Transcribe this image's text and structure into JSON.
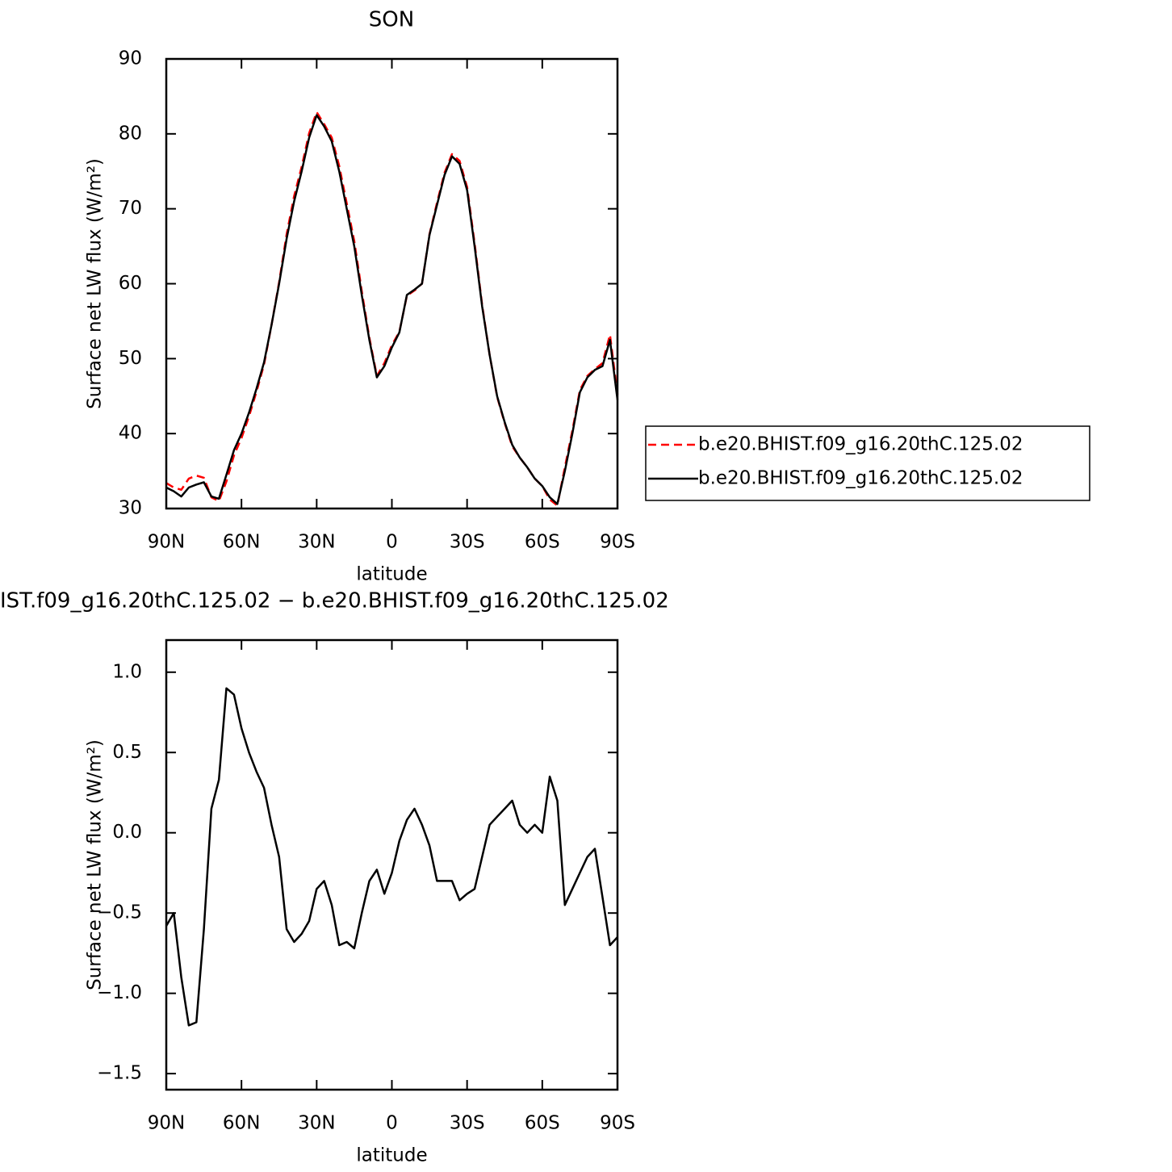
{
  "chart_data": [
    {
      "type": "line",
      "title": "SON",
      "x_label": "latitude",
      "y_label": "Surface net LW flux (W/m²)",
      "x": [
        90,
        87,
        84,
        81,
        78,
        75,
        72,
        69,
        66,
        63,
        60,
        57,
        54,
        51,
        48,
        45,
        42,
        39,
        36,
        33,
        30,
        27,
        24,
        21,
        18,
        15,
        12,
        9,
        6,
        3,
        0,
        -3,
        -6,
        -9,
        -12,
        -15,
        -18,
        -21,
        -24,
        -27,
        -30,
        -33,
        -36,
        -39,
        -42,
        -45,
        -48,
        -51,
        -54,
        -57,
        -60,
        -63,
        -66,
        -69,
        -72,
        -75,
        -78,
        -81,
        -84,
        -87,
        -90
      ],
      "series": [
        {
          "name": "b.e20.BHIST.f09_g16.20thC.125.02",
          "color": "#ff0000",
          "linestyle": "dashed",
          "values": [
            33.4,
            32.8,
            32.5,
            34.0,
            34.4,
            34.1,
            31.5,
            31.0,
            33.6,
            37.1,
            39.4,
            42.3,
            45.6,
            49.2,
            54.5,
            60.2,
            66.6,
            71.7,
            75.6,
            80.1,
            82.9,
            81.3,
            79.5,
            75.7,
            70.7,
            65.7,
            59.0,
            52.8,
            47.7,
            49.4,
            51.8,
            53.6,
            58.4,
            59.1,
            60.0,
            66.6,
            70.8,
            74.8,
            77.3,
            76.4,
            72.9,
            65.4,
            57.2,
            50.5,
            44.9,
            41.4,
            38.3,
            36.8,
            35.5,
            34.0,
            33.0,
            31.2,
            30.4,
            35.5,
            40.4,
            45.8,
            47.7,
            48.6,
            49.4,
            53.2,
            45.2
          ]
        },
        {
          "name": "b.e20.BHIST.f09_g16.20thC.125.02",
          "color": "#000000",
          "linestyle": "solid",
          "values": [
            32.8,
            32.3,
            31.6,
            32.8,
            33.2,
            33.5,
            31.6,
            31.3,
            34.5,
            37.8,
            40.0,
            42.8,
            46.0,
            49.5,
            54.5,
            60.0,
            66.0,
            71.0,
            75.0,
            79.5,
            82.5,
            81.0,
            79.0,
            75.0,
            70.0,
            65.0,
            58.5,
            52.5,
            47.5,
            49.0,
            51.5,
            53.5,
            58.5,
            59.2,
            60.0,
            66.5,
            70.5,
            74.5,
            77.0,
            76.0,
            72.5,
            65.0,
            57.0,
            50.5,
            45.0,
            41.5,
            38.5,
            36.8,
            35.5,
            34.0,
            33.0,
            31.5,
            30.6,
            35.0,
            40.0,
            45.5,
            47.5,
            48.5,
            49.0,
            52.5,
            44.5
          ]
        }
      ],
      "xlim": [
        90,
        -90
      ],
      "xticks": [
        {
          "value": 90,
          "label": "90N"
        },
        {
          "value": 60,
          "label": "60N"
        },
        {
          "value": 30,
          "label": "30N"
        },
        0,
        {
          "value": -30,
          "label": "30S"
        },
        {
          "value": -60,
          "label": "60S"
        },
        {
          "value": -90,
          "label": "90S"
        }
      ],
      "ylim": [
        30,
        90
      ],
      "yticks": [
        30,
        40,
        50,
        60,
        70,
        80,
        90
      ],
      "legend": "right"
    },
    {
      "type": "line",
      "title": "IST.f09_g16.20thC.125.02 − b.e20.BHIST.f09_g16.20thC.125.02",
      "x_label": "latitude",
      "y_label": "Surface net LW flux (W/m²)",
      "x": [
        90,
        87,
        84,
        81,
        78,
        75,
        72,
        69,
        66,
        63,
        60,
        57,
        54,
        51,
        48,
        45,
        42,
        39,
        36,
        33,
        30,
        27,
        24,
        21,
        18,
        15,
        12,
        9,
        6,
        3,
        0,
        -3,
        -6,
        -9,
        -12,
        -15,
        -18,
        -21,
        -24,
        -27,
        -30,
        -33,
        -36,
        -39,
        -42,
        -45,
        -48,
        -51,
        -54,
        -57,
        -60,
        -63,
        -66,
        -69,
        -72,
        -75,
        -78,
        -81,
        -84,
        -87,
        -90
      ],
      "color": "#000000",
      "values": [
        -0.58,
        -0.5,
        -0.9,
        -1.2,
        -1.18,
        -0.6,
        0.15,
        0.33,
        0.9,
        0.86,
        0.65,
        0.5,
        0.38,
        0.28,
        0.05,
        -0.15,
        -0.6,
        -0.68,
        -0.63,
        -0.55,
        -0.35,
        -0.3,
        -0.45,
        -0.7,
        -0.68,
        -0.72,
        -0.5,
        -0.3,
        -0.23,
        -0.38,
        -0.25,
        -0.05,
        0.08,
        0.15,
        0.05,
        -0.08,
        -0.3,
        -0.3,
        -0.3,
        -0.42,
        -0.38,
        -0.35,
        -0.15,
        0.05,
        0.1,
        0.15,
        0.2,
        0.05,
        0.0,
        0.05,
        0.0,
        0.35,
        0.2,
        -0.45,
        -0.35,
        -0.25,
        -0.15,
        -0.1,
        -0.4,
        -0.7,
        -0.65
      ],
      "xlim": [
        90,
        -90
      ],
      "xticks": [
        {
          "value": 90,
          "label": "90N"
        },
        {
          "value": 60,
          "label": "60N"
        },
        {
          "value": 30,
          "label": "30N"
        },
        0,
        {
          "value": -30,
          "label": "30S"
        },
        {
          "value": -60,
          "label": "60S"
        },
        {
          "value": -90,
          "label": "90S"
        }
      ],
      "ylim": [
        -1.6,
        1.2
      ],
      "yticks": [
        {
          "value": -1.5,
          "label": "−1.5"
        },
        {
          "value": -1,
          "label": "−1.0"
        },
        {
          "value": -0.5,
          "label": "−0.5"
        },
        {
          "value": 0,
          "label": "0.0"
        },
        0.5,
        {
          "value": 1,
          "label": "1.0"
        }
      ]
    }
  ]
}
